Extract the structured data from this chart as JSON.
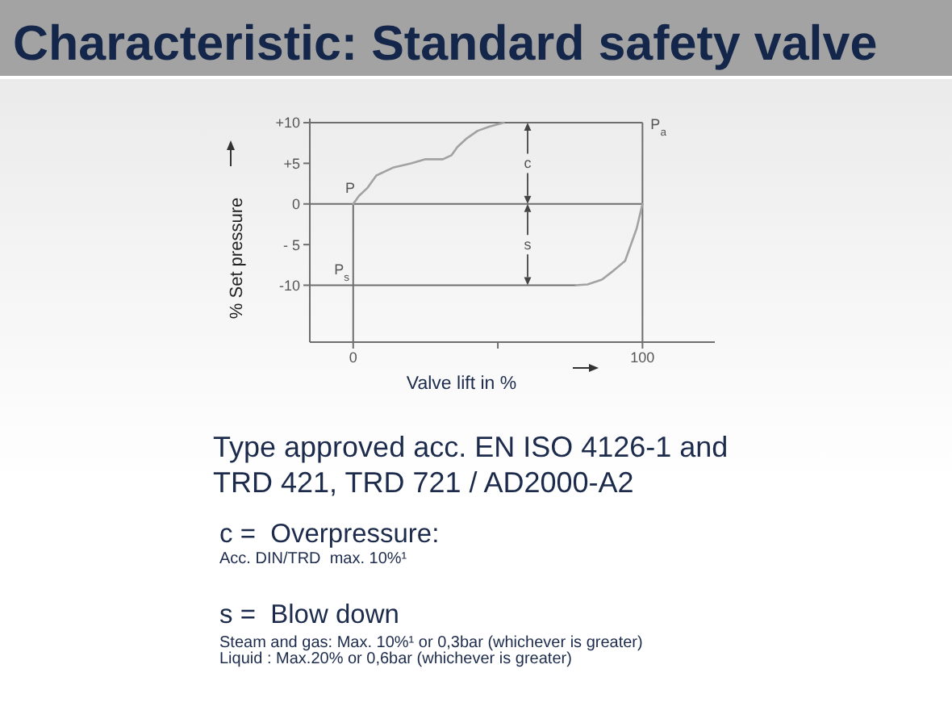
{
  "chart_data": {
    "type": "line",
    "title": "Characteristic: Standard safety valve",
    "xlabel": "Valve lift in %",
    "ylabel": "% Set pressure",
    "xlim": [
      -15,
      125
    ],
    "xticks": [
      0,
      {
        "value": 50,
        "label": null
      },
      100
    ],
    "ylim": [
      -17,
      10.5
    ],
    "yticks": [
      {
        "value": 10,
        "label": "+10"
      },
      {
        "value": 5,
        "label": "+5"
      },
      0,
      {
        "value": -5,
        "label": "- 5"
      },
      -10
    ],
    "series": [
      {
        "color": "#a2a2a2",
        "x": [
          0,
          2,
          5,
          8,
          14,
          20,
          25,
          31,
          34,
          36,
          39,
          43,
          47,
          52
        ],
        "values": [
          0,
          1,
          2,
          3.5,
          4.5,
          5,
          5.5,
          5.5,
          6,
          7,
          8,
          9,
          9.5,
          10
        ]
      },
      {
        "color": "#a2a2a2",
        "x": [
          100,
          99,
          98,
          96,
          94,
          90,
          86,
          81,
          77
        ],
        "values": [
          0,
          -1.5,
          -3,
          -5,
          -7,
          -8.2,
          -9.3,
          -9.9,
          -10
        ]
      }
    ],
    "ref_lines": [
      {
        "axis": "y",
        "value": 10,
        "color": "#6e6e6e"
      },
      {
        "axis": "y",
        "value": 0,
        "color": "#6e6e6e"
      },
      {
        "axis": "y",
        "value": -10,
        "color": "#6e6e6e"
      },
      {
        "axis": "x",
        "value": 0,
        "color": "#6e6e6e"
      },
      {
        "axis": "x",
        "value": 100,
        "color": "#6e6e6e"
      }
    ],
    "annotations": [
      "P",
      "P$_{s}$",
      {
        "text": "P$_{a}$",
        "x": 100,
        "y": 10
      },
      "c",
      "s",
      "Type approved acc. EN ISO 4126-1 and TRD 421, TRD 721 / AD2000-A2",
      "c =  Overpressure:",
      "Acc. DIN/TRD  max. 10%¹",
      "s =  Blow down",
      "Steam and gas: Max. 10%¹ or 0,3bar (whichever is greater)",
      "Liquid : Max.20% or 0,6bar (whichever is greater)"
    ],
    "grid": false,
    "marker": "none",
    "line_style": "solid"
  }
}
